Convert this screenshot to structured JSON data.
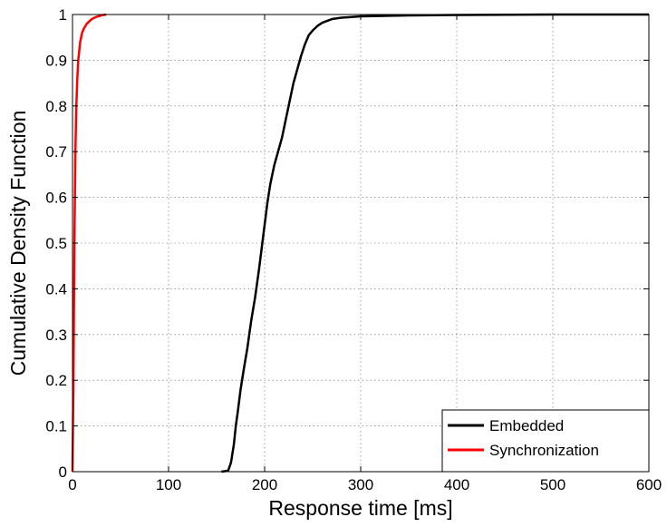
{
  "chart_data": {
    "type": "line",
    "title": "",
    "xlabel": "Response time [ms]",
    "ylabel": "Cumulative Density Function",
    "xlim": [
      0,
      600
    ],
    "ylim": [
      0,
      1
    ],
    "xticks": [
      "0",
      "100",
      "200",
      "300",
      "400",
      "500",
      "600"
    ],
    "yticks": [
      "0",
      "0.1",
      "0.2",
      "0.3",
      "0.4",
      "0.5",
      "0.6",
      "0.7",
      "0.8",
      "0.9",
      "1"
    ],
    "grid": true,
    "legend_position": "bottom-right",
    "series": [
      {
        "name": "Embedded",
        "color": "#000000",
        "x": [
          155,
          162,
          165,
          168,
          170,
          172,
          175,
          178,
          182,
          186,
          190,
          194,
          197,
          200,
          203,
          206,
          210,
          214,
          218,
          222,
          226,
          230,
          234,
          238,
          242,
          246,
          250,
          255,
          260,
          270,
          280,
          300,
          350,
          400,
          500,
          600
        ],
        "y": [
          0,
          0.002,
          0.02,
          0.06,
          0.1,
          0.13,
          0.18,
          0.22,
          0.27,
          0.33,
          0.38,
          0.44,
          0.49,
          0.54,
          0.59,
          0.63,
          0.67,
          0.7,
          0.73,
          0.77,
          0.81,
          0.85,
          0.88,
          0.91,
          0.935,
          0.955,
          0.965,
          0.975,
          0.982,
          0.99,
          0.993,
          0.996,
          0.998,
          0.999,
          1.0,
          1.0
        ]
      },
      {
        "name": "Synchronization",
        "color": "#ff0000",
        "x": [
          0,
          1,
          2,
          3,
          4,
          5,
          6,
          7,
          8,
          10,
          12,
          15,
          20,
          25,
          30,
          35
        ],
        "y": [
          0,
          0.2,
          0.5,
          0.7,
          0.8,
          0.86,
          0.9,
          0.92,
          0.94,
          0.96,
          0.97,
          0.98,
          0.99,
          0.995,
          0.998,
          1.0
        ]
      }
    ]
  }
}
